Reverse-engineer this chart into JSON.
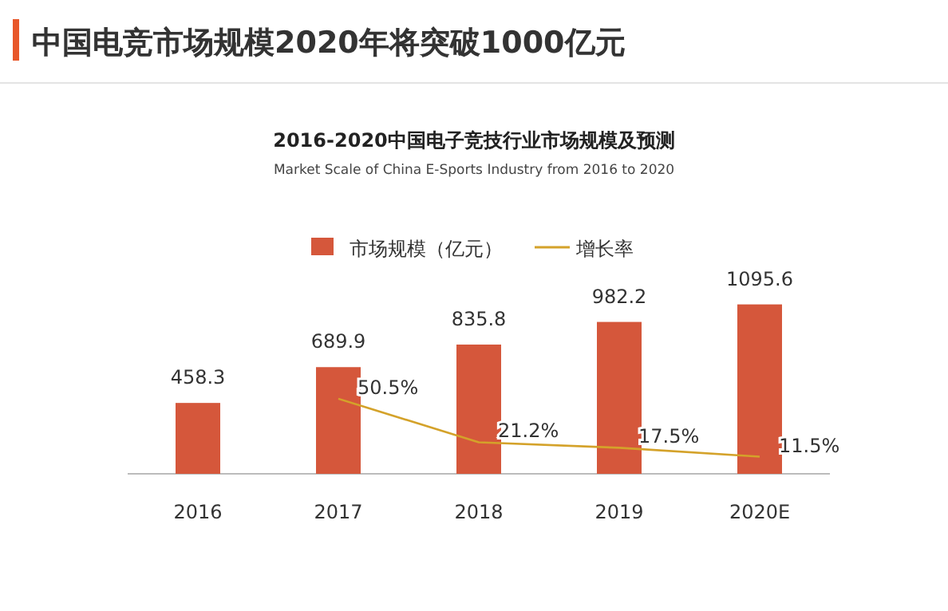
{
  "chart_data": {
    "type": "bar",
    "title": "2016-2020中国电子竞技行业市场规模及预测",
    "subtitle": "Market Scale of China E-Sports Industry from 2016 to 2020",
    "annotations": [
      "中国电竞市场规模2020年将突破1000亿元"
    ],
    "categories": [
      "2016",
      "2017",
      "2018",
      "2019",
      "2020E"
    ],
    "series": [
      {
        "name": "市场规模（亿元）",
        "color": "#d5573b",
        "values": [
          458.3,
          689.9,
          835.8,
          982.2,
          1095.6
        ],
        "value_labels": [
          "458.3",
          "689.9",
          "835.8",
          "982.2",
          "1095.6"
        ]
      },
      {
        "name": "增长率",
        "type": "line",
        "axis": "y2",
        "color": "#d4a22a",
        "values": [
          null,
          50.5,
          21.2,
          17.5,
          11.5
        ],
        "value_labels": [
          null,
          "50.5%",
          "21.2%",
          "17.5%",
          "11.5%"
        ]
      }
    ],
    "legend": "top",
    "marker": "none"
  }
}
